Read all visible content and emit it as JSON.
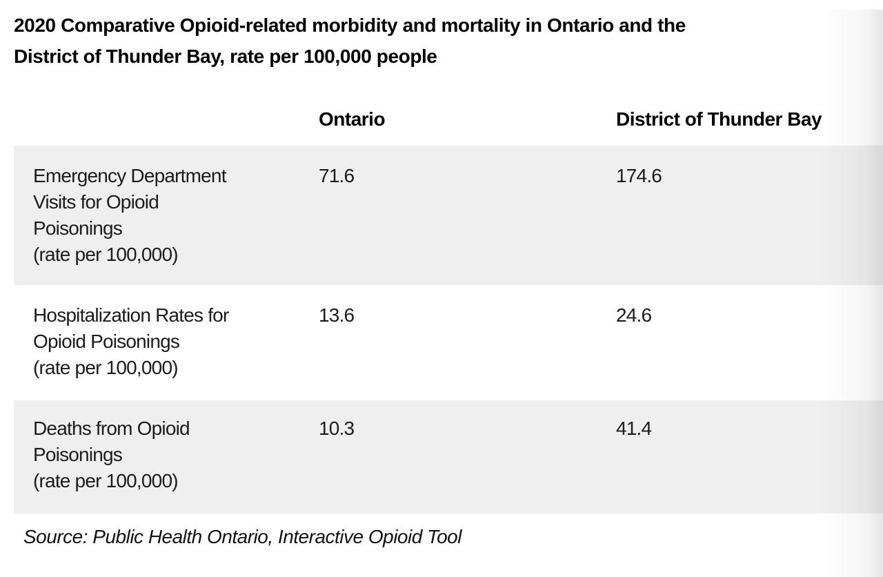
{
  "title": {
    "lines": [
      "2020 Comparative Opioid-related morbidity and mortality in Ontario and the",
      "District of Thunder Bay, rate per 100,000 people"
    ]
  },
  "table": {
    "columns": {
      "ontario": "Ontario",
      "thunder_bay": "District of Thunder Bay"
    },
    "rows": [
      {
        "label_lines": [
          "Emergency Department",
          "Visits for Opioid",
          "Poisonings",
          "(rate per 100,000)"
        ],
        "ontario": "71.6",
        "thunder_bay": "174.6"
      },
      {
        "label_lines": [
          "Hospitalization Rates for",
          "Opioid Poisonings",
          "(rate per 100,000)"
        ],
        "ontario": "13.6",
        "thunder_bay": "24.6"
      },
      {
        "label_lines": [
          "Deaths from Opioid",
          "Poisonings",
          "(rate per 100,000)"
        ],
        "ontario": "10.3",
        "thunder_bay": "41.4"
      }
    ]
  },
  "source": "Source: Public Health Ontario, Interactive Opioid Tool",
  "colors": {
    "row_shade": "#efefef",
    "text": "#1b1b1b",
    "background": "#ffffff"
  },
  "chart_data": {
    "type": "table",
    "title": "2020 Comparative Opioid-related morbidity and mortality in Ontario and the District of Thunder Bay, rate per 100,000 people",
    "columns": [
      "",
      "Ontario",
      "District of Thunder Bay"
    ],
    "rows": [
      [
        "Emergency Department Visits for Opioid Poisonings (rate per 100,000)",
        71.6,
        174.6
      ],
      [
        "Hospitalization Rates for Opioid Poisonings (rate per 100,000)",
        13.6,
        24.6
      ],
      [
        "Deaths from Opioid Poisonings (rate per 100,000)",
        10.3,
        41.4
      ]
    ],
    "source": "Source: Public Health Ontario, Interactive Opioid Tool"
  }
}
